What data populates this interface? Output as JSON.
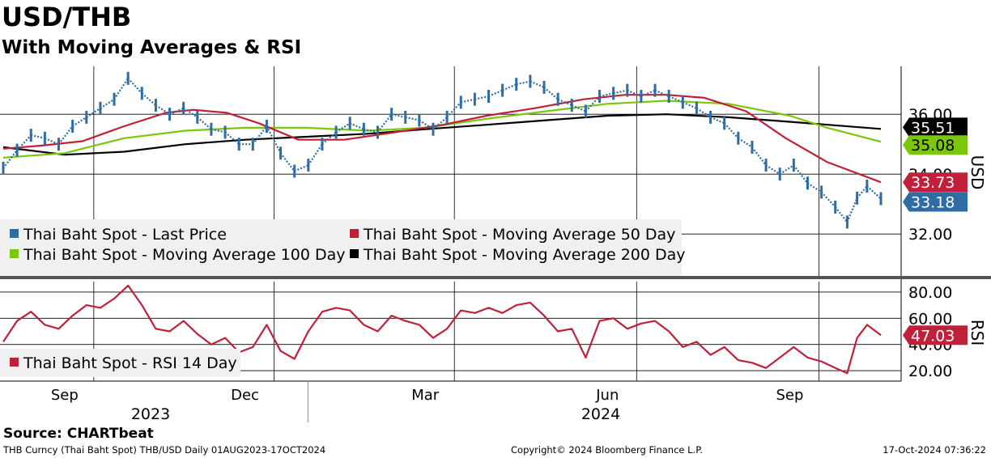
{
  "title": "USD/THB",
  "subtitle": "With Moving Averages & RSI",
  "source": "Source: CHARTbeat",
  "footer": {
    "left": "THB Curncy (Thai Baht Spot) THB/USD  Daily 01AUG2023-17OCT2024",
    "center": "Copyright© 2024 Bloomberg Finance L.P.",
    "right": "17-Oct-2024 07:36:22"
  },
  "chart_data": [
    {
      "type": "line",
      "panel": "price",
      "ylabel": "USD",
      "ylim": [
        30.6,
        37.6
      ],
      "y_ticks": [
        32.0,
        34.0,
        36.0
      ],
      "grid": true,
      "legend_placement": "bottom-left",
      "x_range": [
        "2023-08-01",
        "2024-10-17"
      ],
      "x_month_ticks": [
        {
          "label": "Sep",
          "date": "2023-09-01"
        },
        {
          "label": "Dec",
          "date": "2023-12-01"
        },
        {
          "label": "Mar",
          "date": "2024-03-01"
        },
        {
          "label": "Jun",
          "date": "2024-06-01"
        },
        {
          "label": "Sep",
          "date": "2024-09-01"
        }
      ],
      "x_year_labels": [
        {
          "label": "2023",
          "date": "2023-10-15"
        },
        {
          "label": "2024",
          "date": "2024-05-01"
        }
      ],
      "series": [
        {
          "name": "Thai Baht Spot - Last Price",
          "color": "#2e6da4",
          "style": "bars",
          "points": [
            [
              "2023-08-01",
              34.2
            ],
            [
              "2023-08-08",
              34.8
            ],
            [
              "2023-08-15",
              35.3
            ],
            [
              "2023-08-22",
              35.2
            ],
            [
              "2023-08-29",
              35.0
            ],
            [
              "2023-09-05",
              35.6
            ],
            [
              "2023-09-12",
              35.9
            ],
            [
              "2023-09-19",
              36.2
            ],
            [
              "2023-09-26",
              36.5
            ],
            [
              "2023-10-03",
              37.2
            ],
            [
              "2023-10-10",
              36.7
            ],
            [
              "2023-10-17",
              36.3
            ],
            [
              "2023-10-24",
              36.0
            ],
            [
              "2023-10-31",
              36.2
            ],
            [
              "2023-11-07",
              35.9
            ],
            [
              "2023-11-14",
              35.5
            ],
            [
              "2023-11-21",
              35.4
            ],
            [
              "2023-11-28",
              35.0
            ],
            [
              "2023-12-05",
              35.0
            ],
            [
              "2023-12-12",
              35.6
            ],
            [
              "2023-12-19",
              34.7
            ],
            [
              "2023-12-26",
              34.1
            ],
            [
              "2024-01-02",
              34.3
            ],
            [
              "2024-01-09",
              35.0
            ],
            [
              "2024-01-16",
              35.4
            ],
            [
              "2024-01-23",
              35.7
            ],
            [
              "2024-01-30",
              35.5
            ],
            [
              "2024-02-06",
              35.4
            ],
            [
              "2024-02-13",
              36.0
            ],
            [
              "2024-02-20",
              35.9
            ],
            [
              "2024-02-27",
              35.8
            ],
            [
              "2024-03-05",
              35.5
            ],
            [
              "2024-03-12",
              35.9
            ],
            [
              "2024-03-19",
              36.4
            ],
            [
              "2024-03-26",
              36.5
            ],
            [
              "2024-04-02",
              36.6
            ],
            [
              "2024-04-09",
              36.8
            ],
            [
              "2024-04-16",
              37.0
            ],
            [
              "2024-04-23",
              37.1
            ],
            [
              "2024-04-30",
              36.9
            ],
            [
              "2024-05-07",
              36.5
            ],
            [
              "2024-05-14",
              36.3
            ],
            [
              "2024-05-21",
              36.1
            ],
            [
              "2024-05-28",
              36.6
            ],
            [
              "2024-06-04",
              36.7
            ],
            [
              "2024-06-11",
              36.8
            ],
            [
              "2024-06-18",
              36.6
            ],
            [
              "2024-06-25",
              36.8
            ],
            [
              "2024-07-02",
              36.6
            ],
            [
              "2024-07-09",
              36.4
            ],
            [
              "2024-07-16",
              36.2
            ],
            [
              "2024-07-23",
              35.9
            ],
            [
              "2024-07-30",
              35.7
            ],
            [
              "2024-08-06",
              35.2
            ],
            [
              "2024-08-13",
              34.9
            ],
            [
              "2024-08-20",
              34.3
            ],
            [
              "2024-08-27",
              34.0
            ],
            [
              "2024-09-03",
              34.3
            ],
            [
              "2024-09-10",
              33.7
            ],
            [
              "2024-09-17",
              33.4
            ],
            [
              "2024-09-24",
              32.9
            ],
            [
              "2024-09-30",
              32.4
            ],
            [
              "2024-10-05",
              33.2
            ],
            [
              "2024-10-10",
              33.6
            ],
            [
              "2024-10-17",
              33.18
            ]
          ]
        },
        {
          "name": "Thai Baht Spot - Moving Average 50 Day",
          "color": "#c0203a",
          "style": "line",
          "points": [
            [
              "2023-08-01",
              34.85
            ],
            [
              "2023-08-20",
              34.95
            ],
            [
              "2023-09-10",
              35.1
            ],
            [
              "2023-10-01",
              35.6
            ],
            [
              "2023-10-22",
              36.05
            ],
            [
              "2023-11-05",
              36.15
            ],
            [
              "2023-11-22",
              36.05
            ],
            [
              "2023-12-08",
              35.7
            ],
            [
              "2023-12-28",
              35.15
            ],
            [
              "2024-01-20",
              35.15
            ],
            [
              "2024-02-15",
              35.4
            ],
            [
              "2024-03-10",
              35.65
            ],
            [
              "2024-04-01",
              35.95
            ],
            [
              "2024-04-25",
              36.2
            ],
            [
              "2024-05-20",
              36.5
            ],
            [
              "2024-06-10",
              36.65
            ],
            [
              "2024-07-01",
              36.65
            ],
            [
              "2024-07-20",
              36.55
            ],
            [
              "2024-08-10",
              36.1
            ],
            [
              "2024-08-30",
              35.2
            ],
            [
              "2024-09-20",
              34.4
            ],
            [
              "2024-10-17",
              33.73
            ]
          ]
        },
        {
          "name": "Thai Baht Spot - Moving Average 100 Day",
          "color": "#7ac70c",
          "style": "line",
          "points": [
            [
              "2023-08-01",
              34.55
            ],
            [
              "2023-09-01",
              34.7
            ],
            [
              "2023-10-01",
              35.2
            ],
            [
              "2023-11-01",
              35.45
            ],
            [
              "2023-12-01",
              35.55
            ],
            [
              "2024-01-01",
              35.55
            ],
            [
              "2024-02-01",
              35.45
            ],
            [
              "2024-03-01",
              35.55
            ],
            [
              "2024-04-01",
              35.85
            ],
            [
              "2024-05-01",
              36.1
            ],
            [
              "2024-06-01",
              36.35
            ],
            [
              "2024-07-01",
              36.45
            ],
            [
              "2024-08-01",
              36.35
            ],
            [
              "2024-09-01",
              35.95
            ],
            [
              "2024-09-20",
              35.55
            ],
            [
              "2024-10-17",
              35.08
            ]
          ]
        },
        {
          "name": "Thai Baht Spot - Moving Average 200 Day",
          "color": "#000000",
          "style": "line",
          "points": [
            [
              "2023-08-01",
              34.9
            ],
            [
              "2023-09-01",
              34.65
            ],
            [
              "2023-10-01",
              34.75
            ],
            [
              "2023-11-01",
              35.0
            ],
            [
              "2023-12-01",
              35.15
            ],
            [
              "2024-01-01",
              35.25
            ],
            [
              "2024-02-01",
              35.35
            ],
            [
              "2024-03-01",
              35.5
            ],
            [
              "2024-04-01",
              35.65
            ],
            [
              "2024-05-01",
              35.8
            ],
            [
              "2024-06-01",
              35.95
            ],
            [
              "2024-07-01",
              36.0
            ],
            [
              "2024-08-01",
              35.9
            ],
            [
              "2024-09-01",
              35.75
            ],
            [
              "2024-10-17",
              35.51
            ]
          ]
        }
      ],
      "last_value_labels": [
        {
          "value": 35.51,
          "text": "35.51",
          "bg": "#000000",
          "fg": "#ffffff"
        },
        {
          "value": 35.08,
          "text": "35.08",
          "bg": "#7ac70c",
          "fg": "#000000"
        },
        {
          "value": 33.73,
          "text": "33.73",
          "bg": "#c0203a",
          "fg": "#ffffff"
        },
        {
          "value": 33.18,
          "text": "33.18",
          "bg": "#2e6da4",
          "fg": "#ffffff"
        }
      ]
    },
    {
      "type": "line",
      "panel": "rsi",
      "ylabel": "RSI",
      "ylim": [
        12,
        88
      ],
      "y_ticks": [
        20.0,
        40.0,
        60.0,
        80.0
      ],
      "y_tick_labels": [
        "20.00",
        "40.00",
        "60.00",
        "80.00"
      ],
      "grid": true,
      "legend_placement": "bottom-left",
      "series": [
        {
          "name": "Thai Baht Spot - RSI 14 Day",
          "color": "#c0203a",
          "points": [
            [
              "2023-08-01",
              42
            ],
            [
              "2023-08-08",
              58
            ],
            [
              "2023-08-15",
              65
            ],
            [
              "2023-08-22",
              55
            ],
            [
              "2023-08-29",
              52
            ],
            [
              "2023-09-05",
              62
            ],
            [
              "2023-09-12",
              70
            ],
            [
              "2023-09-19",
              68
            ],
            [
              "2023-09-26",
              75
            ],
            [
              "2023-10-03",
              85
            ],
            [
              "2023-10-10",
              70
            ],
            [
              "2023-10-17",
              52
            ],
            [
              "2023-10-24",
              50
            ],
            [
              "2023-10-31",
              58
            ],
            [
              "2023-11-07",
              48
            ],
            [
              "2023-11-14",
              40
            ],
            [
              "2023-11-21",
              45
            ],
            [
              "2023-11-28",
              34
            ],
            [
              "2023-12-05",
              38
            ],
            [
              "2023-12-12",
              55
            ],
            [
              "2023-12-19",
              35
            ],
            [
              "2023-12-26",
              29
            ],
            [
              "2024-01-02",
              50
            ],
            [
              "2024-01-09",
              65
            ],
            [
              "2024-01-16",
              68
            ],
            [
              "2024-01-23",
              66
            ],
            [
              "2024-01-30",
              55
            ],
            [
              "2024-02-06",
              50
            ],
            [
              "2024-02-13",
              62
            ],
            [
              "2024-02-20",
              58
            ],
            [
              "2024-02-27",
              55
            ],
            [
              "2024-03-05",
              45
            ],
            [
              "2024-03-12",
              52
            ],
            [
              "2024-03-19",
              66
            ],
            [
              "2024-03-26",
              64
            ],
            [
              "2024-04-02",
              68
            ],
            [
              "2024-04-09",
              64
            ],
            [
              "2024-04-16",
              70
            ],
            [
              "2024-04-23",
              72
            ],
            [
              "2024-04-30",
              62
            ],
            [
              "2024-05-07",
              50
            ],
            [
              "2024-05-14",
              52
            ],
            [
              "2024-05-21",
              30
            ],
            [
              "2024-05-28",
              58
            ],
            [
              "2024-06-04",
              60
            ],
            [
              "2024-06-11",
              52
            ],
            [
              "2024-06-18",
              56
            ],
            [
              "2024-06-25",
              58
            ],
            [
              "2024-07-02",
              50
            ],
            [
              "2024-07-09",
              38
            ],
            [
              "2024-07-16",
              42
            ],
            [
              "2024-07-23",
              32
            ],
            [
              "2024-07-30",
              38
            ],
            [
              "2024-08-06",
              28
            ],
            [
              "2024-08-13",
              26
            ],
            [
              "2024-08-20",
              22
            ],
            [
              "2024-08-27",
              30
            ],
            [
              "2024-09-03",
              38
            ],
            [
              "2024-09-10",
              30
            ],
            [
              "2024-09-17",
              27
            ],
            [
              "2024-09-24",
              22
            ],
            [
              "2024-09-30",
              18
            ],
            [
              "2024-10-05",
              45
            ],
            [
              "2024-10-10",
              55
            ],
            [
              "2024-10-17",
              47.03
            ]
          ]
        }
      ],
      "last_value_labels": [
        {
          "value": 47.03,
          "text": "47.03",
          "bg": "#c0203a",
          "fg": "#ffffff"
        }
      ]
    }
  ]
}
